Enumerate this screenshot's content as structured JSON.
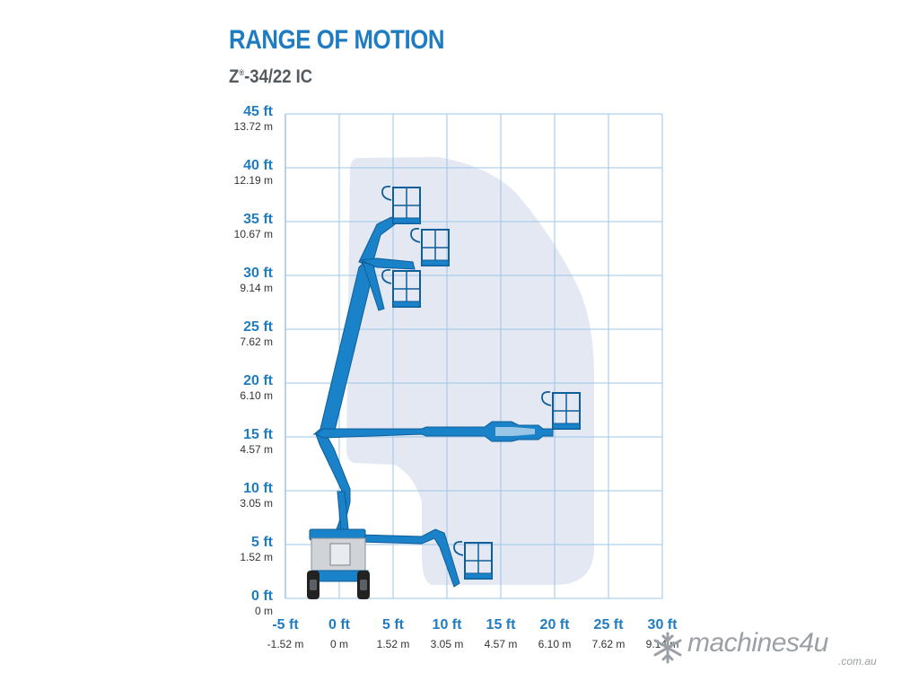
{
  "title": "RANGE OF MOTION",
  "subtitle": {
    "model_prefix": "Z",
    "registered_mark": "®",
    "model_suffix": "-34/22 IC"
  },
  "colors": {
    "title": "#1f7cc1",
    "subtitle": "#555a5f",
    "grid": "#9ec5e6",
    "envelope": "#e3e8f3",
    "boom": "#1a82c8",
    "boom_dark": "#0e5e99",
    "machine_body": "#d0d4d8",
    "tyre": "#222222"
  },
  "chart_data": {
    "type": "diagram",
    "y_axis": {
      "ticks_ft": [
        "45 ft",
        "40 ft",
        "35 ft",
        "30 ft",
        "25 ft",
        "20 ft",
        "15 ft",
        "10 ft",
        "5 ft",
        "0 ft"
      ],
      "ticks_m": [
        "13.72 m",
        "12.19 m",
        "10.67 m",
        "9.14 m",
        "7.62 m",
        "6.10 m",
        "4.57 m",
        "3.05 m",
        "1.52 m",
        "0 m"
      ],
      "range_ft": [
        0,
        45
      ]
    },
    "x_axis": {
      "ticks_ft": [
        "-5 ft",
        "0 ft",
        "5 ft",
        "10 ft",
        "15 ft",
        "20 ft",
        "25 ft",
        "30 ft"
      ],
      "ticks_m": [
        "-1.52 m",
        "0 m",
        "1.52 m",
        "3.05 m",
        "4.57 m",
        "6.10 m",
        "7.62 m",
        "9.14 m"
      ],
      "range_ft": [
        -5,
        30
      ]
    },
    "grid": true
  },
  "watermark": {
    "brand": "machines4u",
    "domain": ".com.au"
  }
}
